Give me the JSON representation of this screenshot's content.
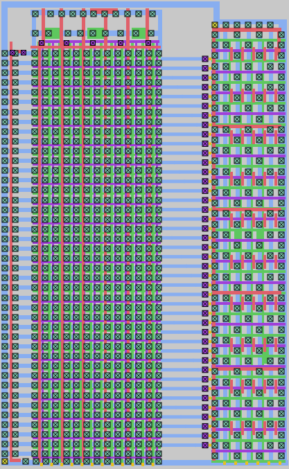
{
  "layout": {
    "layers": [
      {
        "name": "metal1",
        "color": "#88aef0"
      },
      {
        "name": "metal2",
        "color": "#e0606a"
      },
      {
        "name": "poly",
        "color": "#5ec85e"
      },
      {
        "name": "diffusion",
        "color": "#a040d8"
      },
      {
        "name": "contact",
        "color": "#7ec8b0"
      },
      {
        "name": "via",
        "color": "#e8c020"
      },
      {
        "name": "marker",
        "color": "#e0e040"
      }
    ],
    "background": "#c8c8c8",
    "cell_border": "#000000"
  }
}
